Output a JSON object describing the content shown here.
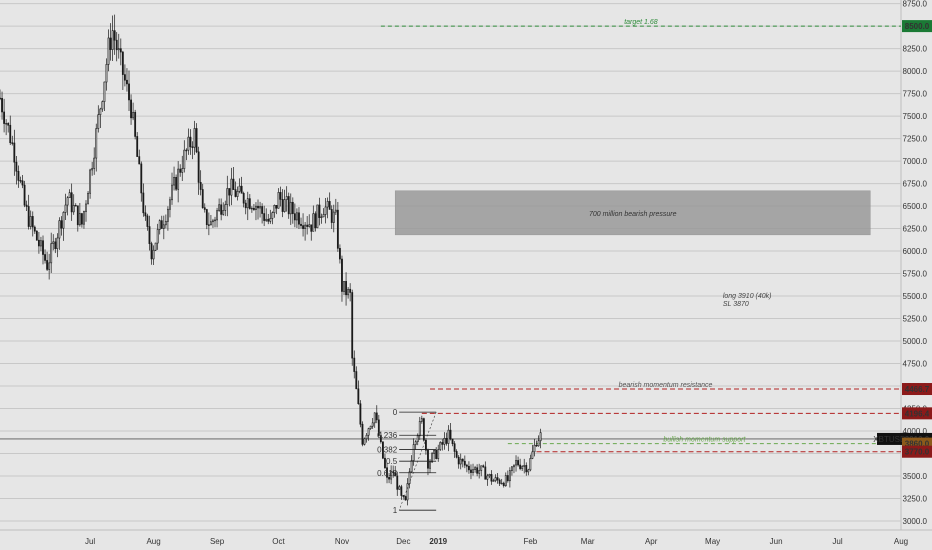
{
  "chart_data": {
    "type": "candlestick",
    "symbol": "XBTUSD",
    "x_ticks": [
      "Jul",
      "Aug",
      "Sep",
      "Oct",
      "Nov",
      "Dec",
      "2019",
      "Feb",
      "Mar",
      "Apr",
      "May",
      "Jun",
      "Jul",
      "Aug"
    ],
    "y_ticks": [
      "3000.0",
      "3250.0",
      "3500.0",
      "3750.0",
      "4000.0",
      "4250.0",
      "4500.0",
      "4750.0",
      "5000.0",
      "5250.0",
      "5500.0",
      "5750.0",
      "6000.0",
      "6250.0",
      "6500.0",
      "6750.0",
      "7000.0",
      "7250.0",
      "7500.0",
      "7750.0",
      "8000.0",
      "8250.0",
      "8500.0",
      "8750.0"
    ],
    "ylim": [
      2900,
      8790
    ],
    "x_domain": [
      "2018-06-01",
      "2019-08-15"
    ],
    "grid": true,
    "price_close": 3912.0,
    "price_labels": [
      {
        "text": "8500.0",
        "value": 8500,
        "color": "#1b7a35"
      },
      {
        "text": "4466.7",
        "value": 4466.7,
        "color": "#8c1a1a"
      },
      {
        "text": "4196.4",
        "value": 4196.4,
        "color": "#8c1a1a"
      },
      {
        "text": "3912.0",
        "value": 3912,
        "color": "#111111",
        "symbol": "XBTUSD"
      },
      {
        "text": "3860.0",
        "value": 3860,
        "color": "#8c5a1a"
      },
      {
        "text": "3770.0",
        "value": 3770,
        "color": "#8c1a1a"
      }
    ],
    "levels": [
      {
        "value": 8500,
        "color": "#2e8b3a",
        "start": "2018-12-04",
        "dash": "4 3",
        "label": "target 1.68"
      },
      {
        "value": 4466.7,
        "color": "#b22222",
        "start": "2018-12-28",
        "dash": "5 3",
        "label": "bearish momentum resistance"
      },
      {
        "value": 4196.4,
        "color": "#b22222",
        "start": "2018-12-24",
        "dash": "5 3"
      },
      {
        "value": 3860,
        "color": "#6aa84f",
        "start": "2019-02-04",
        "dash": "4 3",
        "label": "bullish momentum support"
      },
      {
        "value": 3770,
        "color": "#b22222",
        "start": "2019-02-18",
        "dash": "5 3"
      }
    ],
    "current_price_line": {
      "value": 3912,
      "color": "#555555"
    },
    "zone": {
      "from": "2018-12-11",
      "to": "2019-07-31",
      "low": 6180,
      "high": 6670,
      "label": "700 million bearish pressure",
      "color": "#9a9a9a"
    },
    "note": {
      "lines": [
        "long 3910 (40k)",
        "SL 3870"
      ],
      "date": "2019-05-20",
      "value": 5480
    },
    "fib": {
      "from": "2018-12-10",
      "to": "2018-12-31",
      "high": 4210,
      "low": 3120,
      "levels": [
        {
          "label": "0",
          "value": 4210
        },
        {
          "label": "0.236",
          "value": 3953
        },
        {
          "label": "0.382",
          "value": 3794
        },
        {
          "label": "0.5",
          "value": 3665
        },
        {
          "label": "0.618",
          "value": 3536
        },
        {
          "label": "1",
          "value": 3120
        }
      ]
    },
    "series": [
      {
        "type": "candlestick",
        "anchors": [
          [
            "2018-06-01",
            7700
          ],
          [
            "2018-06-08",
            7100
          ],
          [
            "2018-06-13",
            6500
          ],
          [
            "2018-06-16",
            6300
          ],
          [
            "2018-06-24",
            5850
          ],
          [
            "2018-06-27",
            6050
          ],
          [
            "2018-07-04",
            6600
          ],
          [
            "2018-07-11",
            6300
          ],
          [
            "2018-07-18",
            7300
          ],
          [
            "2018-07-24",
            8250
          ],
          [
            "2018-07-26",
            8450
          ],
          [
            "2018-08-04",
            7600
          ],
          [
            "2018-08-11",
            6300
          ],
          [
            "2018-08-14",
            6000
          ],
          [
            "2018-08-22",
            6500
          ],
          [
            "2018-08-29",
            7000
          ],
          [
            "2018-09-04",
            7300
          ],
          [
            "2018-09-08",
            6400
          ],
          [
            "2018-09-12",
            6300
          ],
          [
            "2018-09-21",
            6700
          ],
          [
            "2018-09-27",
            6600
          ],
          [
            "2018-10-03",
            6550
          ],
          [
            "2018-10-11",
            6300
          ],
          [
            "2018-10-15",
            6600
          ],
          [
            "2018-10-21",
            6450
          ],
          [
            "2018-10-31",
            6300
          ],
          [
            "2018-11-06",
            6500
          ],
          [
            "2018-11-12",
            6350
          ],
          [
            "2018-11-15",
            5600
          ],
          [
            "2018-11-19",
            5500
          ],
          [
            "2018-11-20",
            4800
          ],
          [
            "2018-11-25",
            3900
          ],
          [
            "2018-11-27",
            4000
          ],
          [
            "2018-12-01",
            4200
          ],
          [
            "2018-12-07",
            3450
          ],
          [
            "2018-12-10",
            3550
          ],
          [
            "2018-12-14",
            3250
          ],
          [
            "2018-12-16",
            3200
          ],
          [
            "2018-12-20",
            3900
          ],
          [
            "2018-12-24",
            4100
          ],
          [
            "2018-12-27",
            3650
          ],
          [
            "2018-12-31",
            3750
          ],
          [
            "2019-01-06",
            3950
          ],
          [
            "2019-01-10",
            3700
          ],
          [
            "2019-01-15",
            3600
          ],
          [
            "2019-01-22",
            3560
          ],
          [
            "2019-01-28",
            3450
          ],
          [
            "2019-02-04",
            3450
          ],
          [
            "2019-02-08",
            3650
          ],
          [
            "2019-02-14",
            3600
          ],
          [
            "2019-02-18",
            3900
          ],
          [
            "2019-02-20",
            3950
          ]
        ]
      }
    ]
  }
}
